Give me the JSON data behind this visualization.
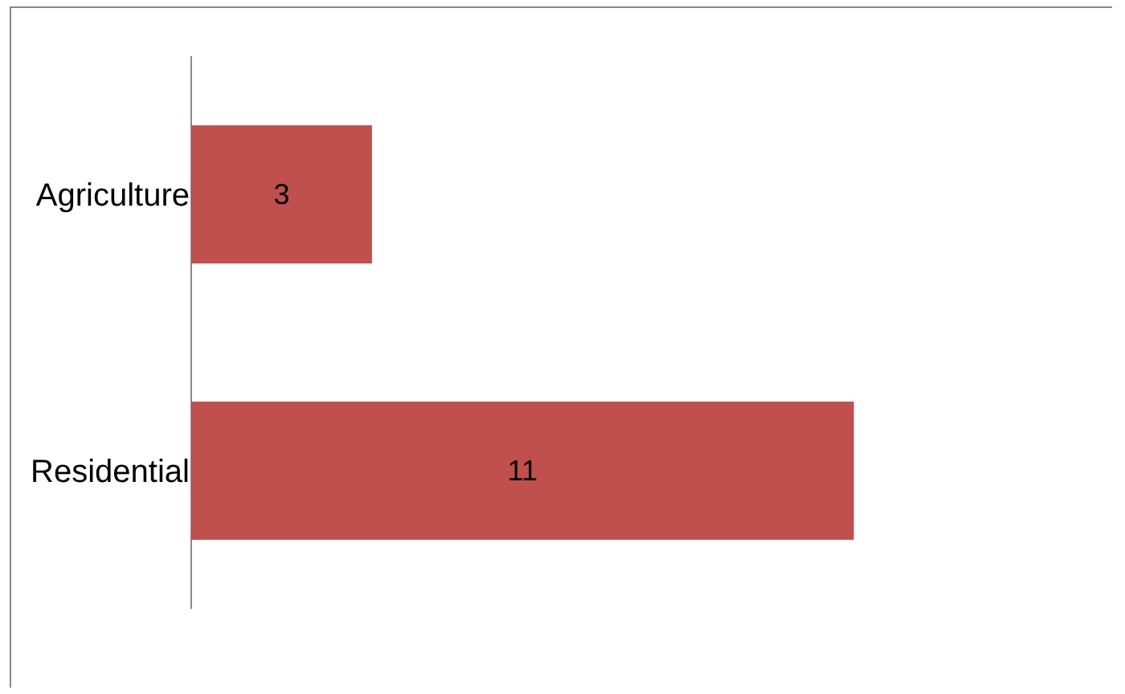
{
  "chart_data": {
    "type": "bar",
    "orientation": "horizontal",
    "categories": [
      "Agriculture",
      "Residential"
    ],
    "values": [
      3,
      11
    ],
    "color": "#c0504d",
    "data_labels": true,
    "tick_labels": "y"
  }
}
